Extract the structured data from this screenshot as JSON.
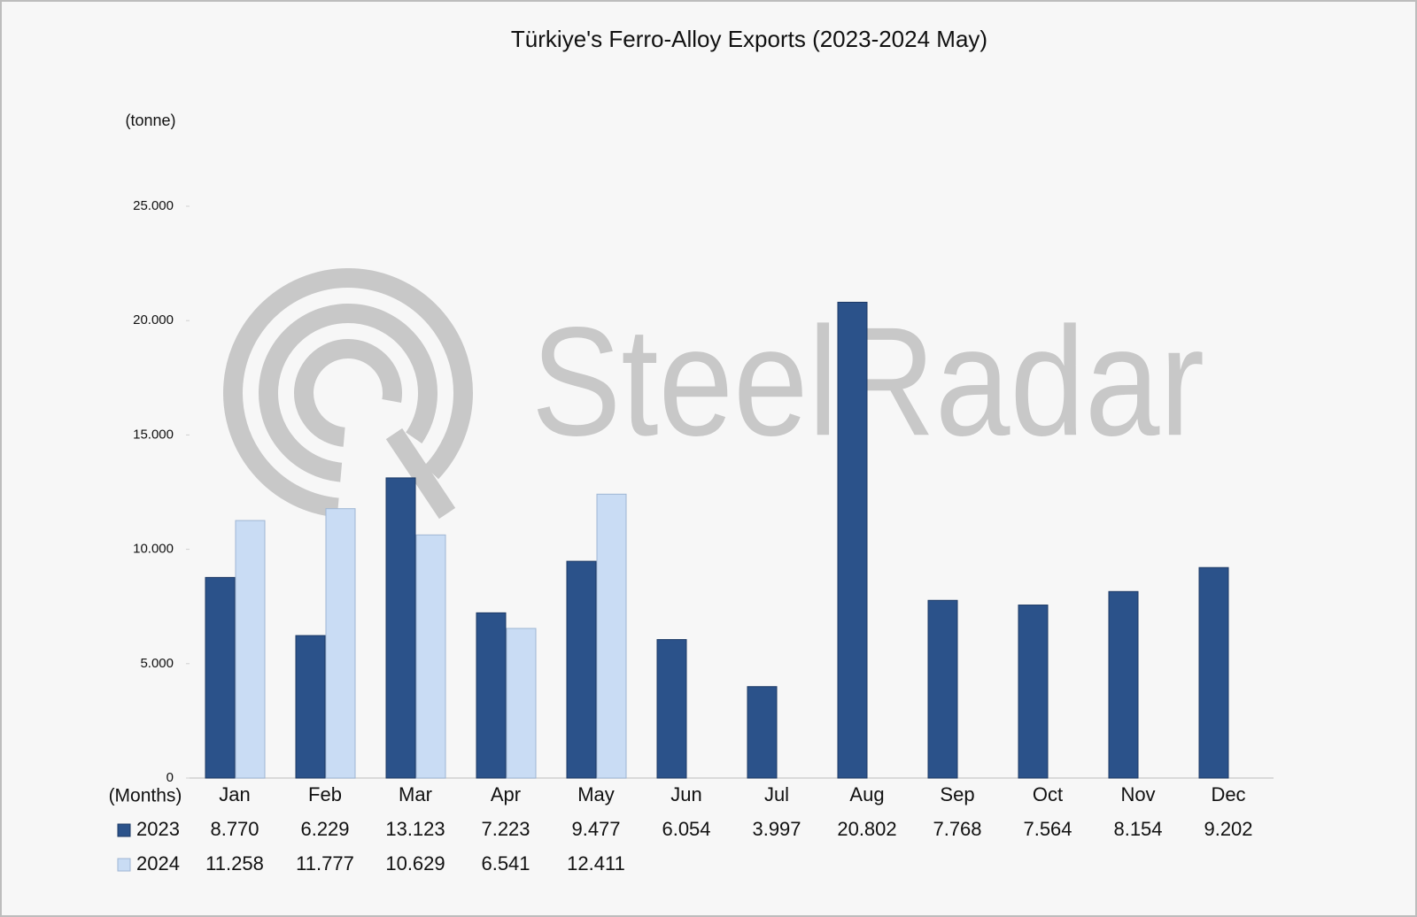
{
  "chart_data": {
    "type": "bar",
    "title": "Türkiye's Ferro-Alloy Exports (2023-2024 May)",
    "y_axis_label": "(tonne)",
    "x_axis_label": "(Months)",
    "watermark": "SteelRadar",
    "categories": [
      "Jan",
      "Feb",
      "Mar",
      "Apr",
      "May",
      "Jun",
      "Jul",
      "Aug",
      "Sep",
      "Oct",
      "Nov",
      "Dec"
    ],
    "series": [
      {
        "name": "2023",
        "color": "#2b528a",
        "values": [
          8770,
          6229,
          13123,
          7223,
          9477,
          6054,
          3997,
          20802,
          7768,
          7564,
          8154,
          9202
        ],
        "value_labels": [
          "8.770",
          "6.229",
          "13.123",
          "7.223",
          "9.477",
          "6.054",
          "3.997",
          "20.802",
          "7.768",
          "7.564",
          "8.154",
          "9.202"
        ]
      },
      {
        "name": "2024",
        "color": "#c9dcf4",
        "values": [
          11258,
          11777,
          10629,
          6541,
          12411,
          null,
          null,
          null,
          null,
          null,
          null,
          null
        ],
        "value_labels": [
          "11.258",
          "11.777",
          "10.629",
          "6.541",
          "12.411",
          null,
          null,
          null,
          null,
          null,
          null,
          null
        ]
      }
    ],
    "ylim": [
      0,
      25000
    ],
    "yticks": [
      0,
      {
        "value": 5000,
        "label": "5.000"
      },
      {
        "value": 10000,
        "label": "10.000"
      },
      {
        "value": 15000,
        "label": "15.000"
      },
      {
        "value": 20000,
        "label": "20.000"
      },
      {
        "value": 25000,
        "label": "25.000"
      }
    ],
    "grid": false
  }
}
